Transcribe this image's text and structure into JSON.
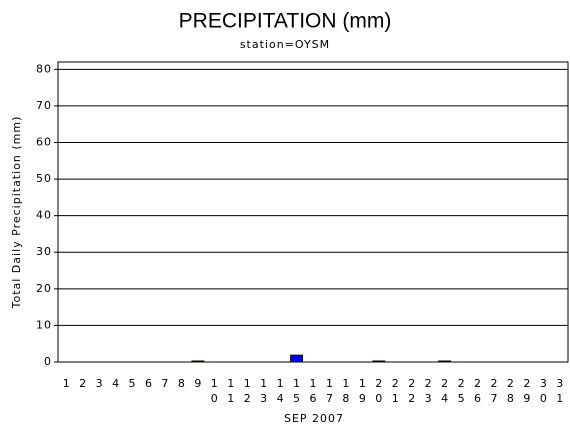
{
  "chart_data": {
    "type": "bar",
    "title": "PRECIPITATION (mm)",
    "subtitle": "station=OYSM",
    "y_label": "Total Daily Precipitation (mm)",
    "x_label": "SEP 2007",
    "categories": [
      "1",
      "2",
      "3",
      "4",
      "5",
      "6",
      "7",
      "8",
      "9",
      "10",
      "11",
      "12",
      "13",
      "14",
      "15",
      "16",
      "17",
      "18",
      "19",
      "20",
      "21",
      "22",
      "23",
      "24",
      "25",
      "26",
      "27",
      "28",
      "29",
      "30",
      "31"
    ],
    "values": [
      0,
      0,
      0,
      0,
      0,
      0,
      0,
      0,
      0.3,
      0,
      0,
      0,
      0,
      0,
      1.9,
      0,
      0,
      0,
      0,
      0.3,
      0,
      0,
      0,
      0.3,
      0,
      0,
      0,
      0,
      0,
      0,
      0
    ],
    "color": "#0000ff",
    "ylim": [
      0,
      82
    ],
    "yticks": [
      0,
      10,
      20,
      30,
      40,
      50,
      60,
      70,
      80
    ],
    "grid": true
  }
}
